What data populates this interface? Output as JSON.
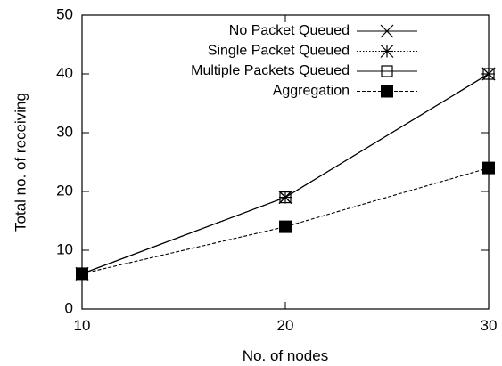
{
  "chart_data": {
    "type": "line",
    "xlabel": "No. of nodes",
    "ylabel": "Total no. of receiving",
    "xlim": [
      10,
      30
    ],
    "ylim": [
      0,
      50
    ],
    "x_ticks": [
      10,
      20,
      30
    ],
    "y_ticks": [
      0,
      10,
      20,
      30,
      40,
      50
    ],
    "grid": false,
    "legend_position": "top-right",
    "x": [
      10,
      20,
      30
    ],
    "series": [
      {
        "name": "No Packet Queued",
        "values": [
          6,
          19,
          40
        ],
        "marker": "cross",
        "line": "solid",
        "color": "#000000"
      },
      {
        "name": "Single Packet Queued",
        "values": [
          6,
          19,
          40
        ],
        "marker": "asterisk",
        "line": "dotted",
        "color": "#000000"
      },
      {
        "name": "Multiple Packets Queued",
        "values": [
          6,
          19,
          40
        ],
        "marker": "open-square",
        "line": "solid",
        "color": "#000000"
      },
      {
        "name": "Aggregation",
        "values": [
          6,
          14,
          24
        ],
        "marker": "filled-square",
        "line": "dashed",
        "color": "#000000"
      }
    ]
  }
}
